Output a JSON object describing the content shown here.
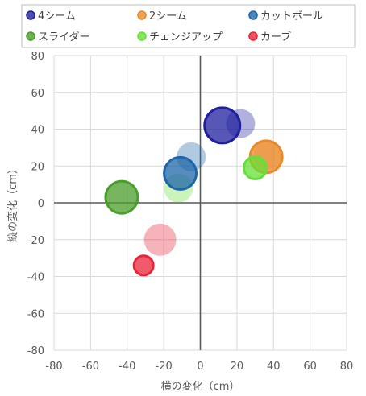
{
  "chart_data": {
    "type": "scatter",
    "title": "",
    "xlabel": "横の変化（cm）",
    "ylabel": "縦の変化（cm）",
    "xlim": [
      -80,
      80
    ],
    "ylim": [
      -80,
      80
    ],
    "xticks": [
      "-80",
      "-60",
      "-40",
      "-20",
      "0",
      "20",
      "40",
      "60",
      "80"
    ],
    "yticks": [
      "80",
      "60",
      "40",
      "20",
      "0",
      "-20",
      "-40",
      "-60",
      "-80"
    ],
    "grid": true,
    "legend_position": "top",
    "series": [
      {
        "name": "4シーム",
        "color": "#1F1F9E",
        "points": [
          {
            "x": 12,
            "y": 42,
            "size": 11,
            "emphasis": true
          },
          {
            "x": 22,
            "y": 43,
            "size": 9,
            "emphasis": false
          }
        ]
      },
      {
        "name": "2シーム",
        "color": "#E8892B",
        "points": [
          {
            "x": 36,
            "y": 25,
            "size": 10,
            "emphasis": true
          },
          {
            "x": 37,
            "y": 26,
            "size": 9,
            "emphasis": false
          }
        ]
      },
      {
        "name": "カットボール",
        "color": "#1E66A8",
        "points": [
          {
            "x": -11,
            "y": 16,
            "size": 10,
            "emphasis": true
          },
          {
            "x": -5,
            "y": 25,
            "size": 9,
            "emphasis": false
          }
        ]
      },
      {
        "name": "スライダー",
        "color": "#4A9E2A",
        "points": [
          {
            "x": -43,
            "y": 3,
            "size": 10,
            "emphasis": true
          }
        ]
      },
      {
        "name": "チェンジアップ",
        "color": "#66E036",
        "points": [
          {
            "x": 30,
            "y": 19,
            "size": 7,
            "emphasis": true
          },
          {
            "x": -12,
            "y": 8,
            "size": 9,
            "emphasis": false
          }
        ]
      },
      {
        "name": "カーブ",
        "color": "#E8253A",
        "points": [
          {
            "x": -31,
            "y": -34,
            "size": 6,
            "emphasis": true
          },
          {
            "x": -22,
            "y": -20,
            "size": 10,
            "emphasis": false
          }
        ]
      }
    ]
  }
}
